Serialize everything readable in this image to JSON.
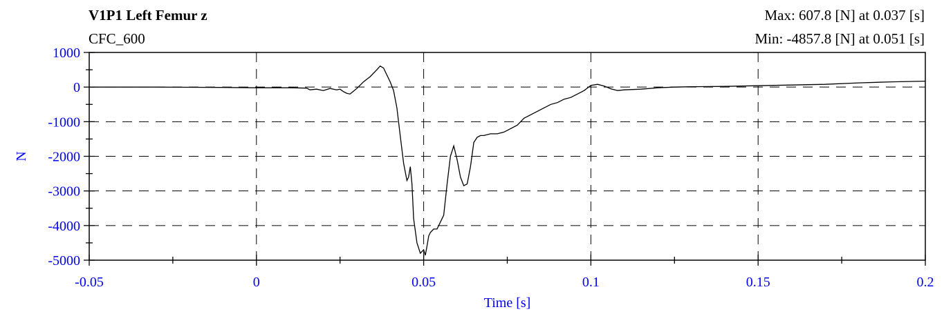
{
  "header": {
    "title": "V1P1 Left Femur z",
    "subtitle": "CFC_600",
    "max_label": "Max:   607.8 [N] at 0.037 [s]",
    "min_label": "Min: -4857.8 [N] at 0.051 [s]"
  },
  "colors": {
    "axis_text": "#0000ff",
    "line": "#000000",
    "frame": "#000000",
    "grid": "#000000"
  },
  "chart_data": {
    "type": "line",
    "title": "V1P1 Left Femur z",
    "subtitle": "CFC_600",
    "xlabel": "Time [s]",
    "ylabel": "N",
    "xlim": [
      -0.05,
      0.2
    ],
    "ylim": [
      -5000,
      1000
    ],
    "xticks": [
      -0.05,
      0,
      0.05,
      0.1,
      0.15,
      0.2
    ],
    "xtick_labels": [
      "-0.05",
      "0",
      "0.05",
      "0.1",
      "0.15",
      "0.2"
    ],
    "yticks": [
      1000,
      0,
      -1000,
      -2000,
      -3000,
      -4000,
      -5000
    ],
    "ytick_labels": [
      "1000",
      "0",
      "-1000",
      "-2000",
      "-3000",
      "-4000",
      "-5000"
    ],
    "grid": true,
    "series": [
      {
        "color": "#000000",
        "x": [
          -0.05,
          -0.03,
          -0.01,
          0.0,
          0.01,
          0.015,
          0.016,
          0.018,
          0.02,
          0.022,
          0.024,
          0.025,
          0.026,
          0.027,
          0.028,
          0.029,
          0.03,
          0.032,
          0.034,
          0.036,
          0.037,
          0.038,
          0.039,
          0.04,
          0.041,
          0.042,
          0.043,
          0.044,
          0.045,
          0.0455,
          0.046,
          0.0465,
          0.047,
          0.048,
          0.049,
          0.05,
          0.0505,
          0.051,
          0.0515,
          0.052,
          0.053,
          0.054,
          0.055,
          0.056,
          0.057,
          0.058,
          0.059,
          0.06,
          0.061,
          0.062,
          0.063,
          0.064,
          0.065,
          0.066,
          0.067,
          0.068,
          0.07,
          0.072,
          0.074,
          0.076,
          0.078,
          0.08,
          0.082,
          0.084,
          0.086,
          0.088,
          0.09,
          0.092,
          0.094,
          0.096,
          0.098,
          0.1,
          0.102,
          0.104,
          0.106,
          0.108,
          0.11,
          0.115,
          0.12,
          0.125,
          0.13,
          0.14,
          0.15,
          0.16,
          0.17,
          0.18,
          0.19,
          0.2
        ],
        "y": [
          0,
          0,
          -10,
          -20,
          -20,
          -30,
          -80,
          -60,
          -100,
          -40,
          -80,
          -60,
          -130,
          -180,
          -200,
          -120,
          -40,
          150,
          300,
          500,
          607.8,
          550,
          350,
          150,
          -100,
          -600,
          -1400,
          -2200,
          -2700,
          -2600,
          -2300,
          -2800,
          -3800,
          -4500,
          -4800,
          -4700,
          -4857.8,
          -4600,
          -4300,
          -4200,
          -4100,
          -4100,
          -3900,
          -3700,
          -2800,
          -2000,
          -1700,
          -2100,
          -2600,
          -2850,
          -2800,
          -2300,
          -1600,
          -1450,
          -1400,
          -1400,
          -1350,
          -1350,
          -1300,
          -1200,
          -1100,
          -900,
          -800,
          -700,
          -600,
          -500,
          -450,
          -350,
          -300,
          -200,
          -100,
          50,
          80,
          30,
          -50,
          -100,
          -80,
          -60,
          -20,
          0,
          10,
          20,
          40,
          60,
          80,
          120,
          150,
          170
        ]
      }
    ]
  }
}
